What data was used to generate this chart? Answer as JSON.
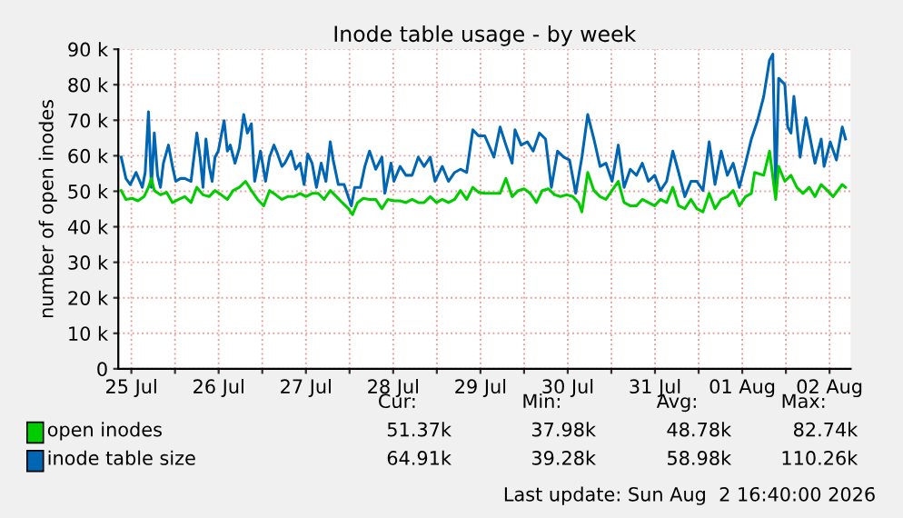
{
  "chart_data": {
    "type": "line",
    "title": "Inode table usage - by week",
    "ylabel": "number of open inodes",
    "xlim": [
      "2026-07-25T08:24",
      "2026-08-02T17:48"
    ],
    "xticks": [
      {
        "value": "2026-07-25T12:00",
        "label": "25 Jul"
      },
      {
        "value": "2026-07-26T00:00",
        "label": null
      },
      {
        "value": "2026-07-26T12:00",
        "label": "26 Jul"
      },
      {
        "value": "2026-07-27T00:00",
        "label": null
      },
      {
        "value": "2026-07-27T12:00",
        "label": "27 Jul"
      },
      {
        "value": "2026-07-28T00:00",
        "label": null
      },
      {
        "value": "2026-07-28T12:00",
        "label": "28 Jul"
      },
      {
        "value": "2026-07-29T00:00",
        "label": null
      },
      {
        "value": "2026-07-29T12:00",
        "label": "29 Jul"
      },
      {
        "value": "2026-07-30T00:00",
        "label": null
      },
      {
        "value": "2026-07-30T12:00",
        "label": "30 Jul"
      },
      {
        "value": "2026-07-31T00:00",
        "label": null
      },
      {
        "value": "2026-07-31T12:00",
        "label": "31 Jul"
      },
      {
        "value": "2026-08-01T00:00",
        "label": null
      },
      {
        "value": "2026-08-01T12:00",
        "label": "01 Aug"
      },
      {
        "value": "2026-08-02T00:00",
        "label": null
      },
      {
        "value": "2026-08-02T12:00",
        "label": "02 Aug"
      }
    ],
    "ylim": [
      0,
      90000
    ],
    "yticks": [
      {
        "value": 0,
        "label": "0"
      },
      {
        "value": 10000,
        "label": "10 k"
      },
      {
        "value": 20000,
        "label": "20 k"
      },
      {
        "value": 30000,
        "label": "30 k"
      },
      {
        "value": 40000,
        "label": "40 k"
      },
      {
        "value": 50000,
        "label": "50 k"
      },
      {
        "value": 60000,
        "label": "60 k"
      },
      {
        "value": 70000,
        "label": "70 k"
      },
      {
        "value": 80000,
        "label": "80 k"
      },
      {
        "value": 90000,
        "label": "90 k"
      }
    ],
    "grid": true,
    "legend": "bottom",
    "line_style": "solid",
    "marker": "none",
    "series": [
      {
        "name": "inode table size",
        "color": "#0066b3",
        "x": [
          "2026-07-25T09:12",
          "2026-07-25T10:30",
          "2026-07-25T11:42",
          "2026-07-25T13:18",
          "2026-07-25T15:00",
          "2026-07-25T15:48",
          "2026-07-25T16:42",
          "2026-07-25T17:30",
          "2026-07-25T18:18",
          "2026-07-25T19:12",
          "2026-07-25T20:00",
          "2026-07-25T20:48",
          "2026-07-25T22:12",
          "2026-07-25T23:18",
          "2026-07-26T00:12",
          "2026-07-26T01:30",
          "2026-07-26T02:42",
          "2026-07-26T04:24",
          "2026-07-26T06:00",
          "2026-07-26T06:54",
          "2026-07-26T07:42",
          "2026-07-26T08:30",
          "2026-07-26T09:24",
          "2026-07-26T10:12",
          "2026-07-26T11:00",
          "2026-07-26T11:54",
          "2026-07-26T13:30",
          "2026-07-26T14:24",
          "2026-07-26T15:12",
          "2026-07-26T16:30",
          "2026-07-26T17:42",
          "2026-07-26T18:54",
          "2026-07-26T19:54",
          "2026-07-26T21:00",
          "2026-07-26T21:54",
          "2026-07-26T23:30",
          "2026-07-27T00:54",
          "2026-07-27T02:00",
          "2026-07-27T03:12",
          "2026-07-27T04:12",
          "2026-07-27T05:24",
          "2026-07-27T06:12",
          "2026-07-27T07:54",
          "2026-07-27T09:12",
          "2026-07-27T10:24",
          "2026-07-27T11:30",
          "2026-07-27T12:30",
          "2026-07-27T13:42",
          "2026-07-27T14:54",
          "2026-07-27T16:12",
          "2026-07-27T17:30",
          "2026-07-27T18:42",
          "2026-07-27T19:30",
          "2026-07-27T20:54",
          "2026-07-27T22:30",
          "2026-07-28T00:30",
          "2026-07-28T01:24",
          "2026-07-28T03:00",
          "2026-07-28T04:12",
          "2026-07-28T05:30",
          "2026-07-28T07:12",
          "2026-07-28T08:54",
          "2026-07-28T09:42",
          "2026-07-28T11:24",
          "2026-07-28T12:12",
          "2026-07-28T13:54",
          "2026-07-28T15:30",
          "2026-07-28T17:12",
          "2026-07-28T18:54",
          "2026-07-28T20:30",
          "2026-07-28T22:12",
          "2026-07-28T23:30",
          "2026-07-29T01:30",
          "2026-07-29T03:12",
          "2026-07-29T04:54",
          "2026-07-29T06:30",
          "2026-07-29T08:12",
          "2026-07-29T09:54",
          "2026-07-29T11:30",
          "2026-07-29T13:12",
          "2026-07-29T15:42",
          "2026-07-29T17:24",
          "2026-07-29T19:00",
          "2026-07-29T20:42",
          "2026-07-29T21:30",
          "2026-07-29T23:12",
          "2026-07-30T00:54",
          "2026-07-30T02:30",
          "2026-07-30T04:12",
          "2026-07-30T05:54",
          "2026-07-30T07:30",
          "2026-07-30T09:12",
          "2026-07-30T10:54",
          "2026-07-30T12:30",
          "2026-07-30T14:12",
          "2026-07-30T15:54",
          "2026-07-30T17:30",
          "2026-07-30T19:12",
          "2026-07-30T20:54",
          "2026-07-30T22:30",
          "2026-07-31T00:12",
          "2026-07-31T01:54",
          "2026-07-31T03:30",
          "2026-07-31T05:12",
          "2026-07-31T06:54",
          "2026-07-31T08:30",
          "2026-07-31T10:12",
          "2026-07-31T11:54",
          "2026-07-31T13:30",
          "2026-07-31T15:12",
          "2026-07-31T16:54",
          "2026-07-31T18:30",
          "2026-07-31T20:12",
          "2026-07-31T21:54",
          "2026-07-31T23:30",
          "2026-08-01T01:12",
          "2026-08-01T02:54",
          "2026-08-01T04:30",
          "2026-08-01T06:12",
          "2026-08-01T07:54",
          "2026-08-01T09:30",
          "2026-08-01T11:12",
          "2026-08-01T12:54",
          "2026-08-01T14:30",
          "2026-08-01T16:12",
          "2026-08-01T17:54",
          "2026-08-01T19:30",
          "2026-08-01T20:24",
          "2026-08-01T21:12",
          "2026-08-01T22:00",
          "2026-08-01T23:42",
          "2026-08-02T00:30",
          "2026-08-02T01:24",
          "2026-08-02T02:12",
          "2026-08-02T03:54",
          "2026-08-02T05:30",
          "2026-08-02T06:24",
          "2026-08-02T08:00",
          "2026-08-02T09:42",
          "2026-08-02T10:30",
          "2026-08-02T12:12",
          "2026-08-02T13:54",
          "2026-08-02T15:30",
          "2026-08-02T16:24"
        ],
        "values": [
          59600,
          53600,
          51900,
          55300,
          51100,
          55300,
          72400,
          51100,
          66400,
          54500,
          51100,
          57900,
          63000,
          57000,
          52800,
          53600,
          53600,
          52800,
          66400,
          59600,
          51100,
          64700,
          57000,
          52800,
          59600,
          61300,
          69900,
          61300,
          63000,
          57900,
          62200,
          71600,
          66400,
          69000,
          52800,
          61300,
          52800,
          59600,
          63000,
          60500,
          57000,
          57900,
          61300,
          56200,
          57900,
          51900,
          60500,
          57900,
          51100,
          57900,
          52800,
          63900,
          58800,
          51900,
          51900,
          45900,
          51100,
          51100,
          57000,
          61300,
          56200,
          59600,
          49400,
          57900,
          52800,
          57000,
          54500,
          54500,
          59600,
          57000,
          59600,
          52800,
          57000,
          52800,
          55300,
          56200,
          55300,
          67300,
          65600,
          65600,
          59600,
          68100,
          63000,
          57900,
          67300,
          63000,
          63900,
          61300,
          66400,
          64700,
          51100,
          61300,
          59600,
          58800,
          49400,
          59600,
          71600,
          64700,
          57000,
          57900,
          52800,
          63000,
          51100,
          56200,
          54500,
          57900,
          52800,
          54500,
          50200,
          52800,
          61300,
          55300,
          48500,
          52800,
          52800,
          50200,
          63900,
          51900,
          61300,
          54500,
          57900,
          51100,
          57900,
          64700,
          69900,
          76700,
          86900,
          88600,
          49400,
          81800,
          80100,
          68100,
          66400,
          76700,
          59600,
          70700,
          66400,
          57900,
          64700,
          57000,
          63900,
          58800,
          68100,
          64700
        ]
      },
      {
        "name": "open inodes",
        "color": "#00cc00",
        "x": [
          "2026-07-25T09:12",
          "2026-07-25T10:30",
          "2026-07-25T12:12",
          "2026-07-25T13:48",
          "2026-07-25T15:30",
          "2026-07-25T16:42",
          "2026-07-25T17:30",
          "2026-07-25T18:18",
          "2026-07-25T20:00",
          "2026-07-25T21:42",
          "2026-07-25T23:18",
          "2026-07-26T01:00",
          "2026-07-26T02:42",
          "2026-07-26T04:24",
          "2026-07-26T06:00",
          "2026-07-26T07:42",
          "2026-07-26T09:24",
          "2026-07-26T11:00",
          "2026-07-26T12:42",
          "2026-07-26T14:24",
          "2026-07-26T16:00",
          "2026-07-26T17:42",
          "2026-07-26T19:24",
          "2026-07-26T21:00",
          "2026-07-26T22:42",
          "2026-07-27T00:24",
          "2026-07-27T02:00",
          "2026-07-27T03:42",
          "2026-07-27T05:24",
          "2026-07-27T07:00",
          "2026-07-27T08:42",
          "2026-07-27T10:24",
          "2026-07-27T12:00",
          "2026-07-27T13:42",
          "2026-07-27T15:24",
          "2026-07-27T17:00",
          "2026-07-27T18:42",
          "2026-07-27T20:24",
          "2026-07-27T22:00",
          "2026-07-27T23:42",
          "2026-07-28T00:48",
          "2026-07-28T02:12",
          "2026-07-28T03:48",
          "2026-07-28T05:30",
          "2026-07-28T07:12",
          "2026-07-28T08:54",
          "2026-07-28T10:30",
          "2026-07-28T12:12",
          "2026-07-28T13:54",
          "2026-07-28T15:30",
          "2026-07-28T17:12",
          "2026-07-28T18:54",
          "2026-07-28T20:30",
          "2026-07-28T22:12",
          "2026-07-28T23:54",
          "2026-07-29T01:30",
          "2026-07-29T03:12",
          "2026-07-29T04:54",
          "2026-07-29T06:30",
          "2026-07-29T08:12",
          "2026-07-29T09:54",
          "2026-07-29T11:30",
          "2026-07-29T13:12",
          "2026-07-29T15:42",
          "2026-07-29T17:24",
          "2026-07-29T19:00",
          "2026-07-29T20:42",
          "2026-07-29T22:24",
          "2026-07-30T00:00",
          "2026-07-30T01:42",
          "2026-07-30T03:24",
          "2026-07-30T05:00",
          "2026-07-30T06:42",
          "2026-07-30T08:24",
          "2026-07-30T10:00",
          "2026-07-30T11:42",
          "2026-07-30T13:24",
          "2026-07-30T15:00",
          "2026-07-30T15:54",
          "2026-07-30T17:30",
          "2026-07-30T19:12",
          "2026-07-30T20:54",
          "2026-07-30T22:30",
          "2026-07-31T01:54",
          "2026-07-31T03:30",
          "2026-07-31T05:12",
          "2026-07-31T06:54",
          "2026-07-31T08:30",
          "2026-07-31T10:12",
          "2026-07-31T11:54",
          "2026-07-31T13:30",
          "2026-07-31T15:12",
          "2026-07-31T16:54",
          "2026-07-31T18:30",
          "2026-07-31T20:12",
          "2026-07-31T21:54",
          "2026-07-31T23:30",
          "2026-08-01T01:12",
          "2026-08-01T02:54",
          "2026-08-01T04:30",
          "2026-08-01T06:12",
          "2026-08-01T07:54",
          "2026-08-01T09:30",
          "2026-08-01T11:12",
          "2026-08-01T12:54",
          "2026-08-01T14:30",
          "2026-08-01T15:24",
          "2026-08-01T17:54",
          "2026-08-01T19:30",
          "2026-08-01T21:12",
          "2026-08-01T22:00",
          "2026-08-01T23:42",
          "2026-08-02T01:24",
          "2026-08-02T03:00",
          "2026-08-02T04:42",
          "2026-08-02T06:24",
          "2026-08-02T08:00",
          "2026-08-02T09:42",
          "2026-08-02T11:24",
          "2026-08-02T13:00",
          "2026-08-02T15:30",
          "2026-08-02T16:24"
        ],
        "values": [
          50200,
          47700,
          48000,
          47300,
          48500,
          51100,
          53600,
          50200,
          49000,
          49700,
          46800,
          47700,
          48500,
          46800,
          51100,
          49000,
          48500,
          50200,
          49000,
          47700,
          50200,
          51100,
          52800,
          50200,
          47700,
          45900,
          50200,
          49000,
          47700,
          48500,
          48500,
          49400,
          48500,
          49400,
          49400,
          47700,
          50200,
          48500,
          46800,
          45100,
          43400,
          46800,
          48000,
          47700,
          47700,
          45100,
          47700,
          47300,
          47300,
          46800,
          47700,
          46800,
          46800,
          48500,
          46800,
          47700,
          46800,
          47700,
          50200,
          47700,
          51100,
          49700,
          49400,
          49400,
          49400,
          53600,
          48500,
          50200,
          50700,
          49400,
          46800,
          50200,
          50700,
          49000,
          48500,
          49000,
          48500,
          46800,
          44200,
          55300,
          50200,
          48500,
          47700,
          52800,
          46800,
          45900,
          45900,
          47700,
          46800,
          45900,
          47700,
          46800,
          51100,
          45900,
          45100,
          47700,
          45100,
          44200,
          49400,
          45100,
          47700,
          48500,
          50200,
          45900,
          48500,
          49400,
          55300,
          54500,
          61300,
          47700,
          57000,
          52800,
          54500,
          51100,
          49400,
          51100,
          48500,
          51900,
          50200,
          48500,
          51900,
          51100
        ]
      }
    ],
    "annotations": [
      "Cur:",
      "Min:",
      "Avg:",
      "Max:",
      "51.37k",
      "37.98k",
      "48.78k",
      "82.74k",
      "64.91k",
      "39.28k",
      "58.98k",
      "110.26k",
      "Last update: Sun Aug  2 16:40:00 2026"
    ]
  }
}
